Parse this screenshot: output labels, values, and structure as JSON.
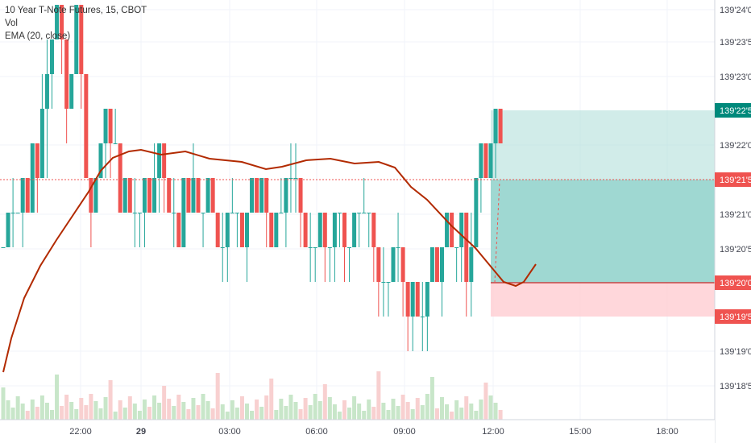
{
  "legend": {
    "symbol": "10 Year T-Note Futures, 15, CBOT",
    "vol": "Vol",
    "ema": "EMA (20, close)"
  },
  "colors": {
    "up": "#26a69a",
    "down": "#ef5350",
    "ema": "#b22a00",
    "target_zone": "#b2dfdb",
    "stop_zone": "#ffcdd2",
    "current_price_tag": "#ef5350",
    "target_tag": "#00897b",
    "stop_tag": "#ef5350",
    "vol_up": "#c8e6c9",
    "vol_down": "#f8d0d0"
  },
  "chart_data": {
    "type": "candlestick",
    "price_axis_ticks": [
      "139'24'0",
      "139'23'5",
      "139'23'0",
      "139'22'0",
      "139'21'0",
      "139'20'5",
      "139'19'0",
      "139'18'5"
    ],
    "price_tags": [
      {
        "label": "139'22'5",
        "kind": "target"
      },
      {
        "label": "139'21'5",
        "kind": "current"
      },
      {
        "label": "139'20'0",
        "kind": "entry"
      },
      {
        "label": "139'19'5",
        "kind": "stop"
      }
    ],
    "time_axis_ticks": [
      "22:00",
      "29",
      "03:00",
      "06:00",
      "09:00",
      "12:00",
      "15:00",
      "18:00"
    ],
    "price_range_ticks": {
      "min": 0,
      "max": 11
    },
    "candles_in_ticks": [
      [
        3,
        3,
        3,
        3
      ],
      [
        3,
        4,
        3,
        4
      ],
      [
        4,
        5,
        3,
        4
      ],
      [
        4,
        4,
        4,
        4
      ],
      [
        4,
        5,
        3,
        5
      ],
      [
        5,
        5,
        4,
        4
      ],
      [
        4,
        6,
        4,
        6
      ],
      [
        6,
        6,
        4,
        5
      ],
      [
        5,
        8,
        5,
        7
      ],
      [
        7,
        9,
        5,
        8
      ],
      [
        8,
        9,
        7,
        9
      ],
      [
        9,
        10,
        9,
        10
      ],
      [
        10,
        10,
        8,
        9
      ],
      [
        9,
        9,
        6,
        7
      ],
      [
        7,
        8,
        7,
        8
      ],
      [
        8,
        10,
        8,
        10
      ],
      [
        10,
        10,
        7,
        8
      ],
      [
        8,
        8,
        5,
        5
      ],
      [
        5,
        5,
        3,
        4
      ],
      [
        4,
        5,
        4,
        5
      ],
      [
        5,
        6,
        5,
        6
      ],
      [
        6,
        7,
        5,
        7
      ],
      [
        7,
        7,
        5,
        6
      ],
      [
        6,
        7,
        6,
        6
      ],
      [
        6,
        6,
        4,
        4
      ],
      [
        4,
        5,
        4,
        5
      ],
      [
        5,
        5,
        4,
        4
      ],
      [
        4,
        5,
        3,
        4
      ],
      [
        4,
        4,
        3,
        4
      ],
      [
        4,
        5,
        3,
        5
      ],
      [
        5,
        5,
        4,
        4
      ],
      [
        4,
        6,
        4,
        5
      ],
      [
        5,
        6,
        4,
        6
      ],
      [
        6,
        6,
        4,
        5
      ],
      [
        5,
        5,
        4,
        4
      ],
      [
        4,
        5,
        3,
        4
      ],
      [
        4,
        4,
        3,
        3
      ],
      [
        3,
        5,
        3,
        5
      ],
      [
        5,
        5,
        4,
        4
      ],
      [
        4,
        6,
        4,
        5
      ],
      [
        5,
        5,
        4,
        4
      ],
      [
        4,
        4,
        3,
        4
      ],
      [
        4,
        5,
        4,
        5
      ],
      [
        5,
        5,
        4,
        4
      ],
      [
        4,
        4,
        3,
        3
      ],
      [
        3,
        4,
        2,
        3
      ],
      [
        3,
        4,
        2,
        4
      ],
      [
        4,
        5,
        4,
        4
      ],
      [
        4,
        4,
        3,
        4
      ],
      [
        4,
        4,
        3,
        3
      ],
      [
        3,
        4,
        2,
        4
      ],
      [
        4,
        5,
        4,
        5
      ],
      [
        5,
        5,
        4,
        4
      ],
      [
        4,
        5,
        4,
        5
      ],
      [
        5,
        5,
        3,
        4
      ],
      [
        4,
        4,
        3,
        3
      ],
      [
        3,
        4,
        3,
        4
      ],
      [
        4,
        5,
        4,
        4
      ],
      [
        4,
        5,
        3,
        5
      ],
      [
        5,
        6,
        4,
        5
      ],
      [
        5,
        6,
        4,
        5
      ],
      [
        5,
        5,
        3,
        4
      ],
      [
        4,
        4,
        3,
        3
      ],
      [
        3,
        4,
        2,
        3
      ],
      [
        3,
        3,
        2,
        3
      ],
      [
        3,
        4,
        3,
        4
      ],
      [
        4,
        4,
        2,
        3
      ],
      [
        3,
        3,
        2,
        3
      ],
      [
        3,
        4,
        2,
        4
      ],
      [
        4,
        4,
        3,
        4
      ],
      [
        4,
        4,
        2,
        3
      ],
      [
        3,
        3,
        2,
        3
      ],
      [
        3,
        4,
        3,
        4
      ],
      [
        4,
        4,
        3,
        4
      ],
      [
        4,
        5,
        4,
        4
      ],
      [
        4,
        4,
        3,
        4
      ],
      [
        4,
        4,
        2,
        3
      ],
      [
        3,
        3,
        1,
        2
      ],
      [
        2,
        3,
        1,
        2
      ],
      [
        2,
        2,
        1,
        2
      ],
      [
        2,
        3,
        2,
        3
      ],
      [
        3,
        4,
        2,
        3
      ],
      [
        3,
        3,
        1,
        2
      ],
      [
        2,
        2,
        0,
        1
      ],
      [
        1,
        2,
        0,
        2
      ],
      [
        2,
        2,
        1,
        1
      ],
      [
        1,
        2,
        0,
        1
      ],
      [
        1,
        2,
        0,
        2
      ],
      [
        2,
        3,
        2,
        3
      ],
      [
        3,
        3,
        2,
        2
      ],
      [
        2,
        3,
        1,
        3
      ],
      [
        3,
        4,
        3,
        4
      ],
      [
        4,
        4,
        3,
        3
      ],
      [
        3,
        3,
        2,
        3
      ],
      [
        3,
        4,
        2,
        4
      ],
      [
        4,
        4,
        1,
        2
      ],
      [
        2,
        4,
        1,
        3
      ],
      [
        3,
        5,
        3,
        5
      ],
      [
        5,
        6,
        4,
        6
      ],
      [
        6,
        6,
        5,
        5
      ],
      [
        5,
        6,
        5,
        6
      ],
      [
        6,
        7,
        5,
        7
      ],
      [
        7,
        7,
        6,
        6
      ]
    ]
  }
}
